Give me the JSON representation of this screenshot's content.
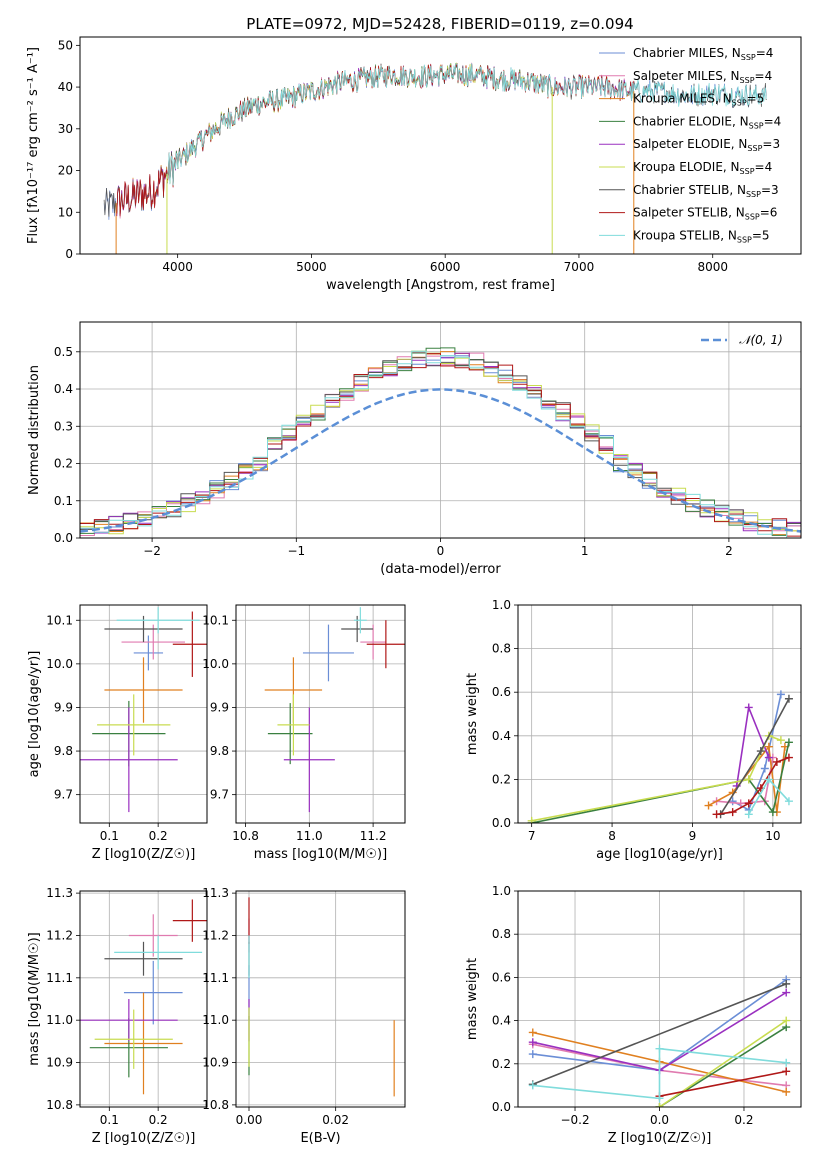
{
  "figure_title": "PLATE=0972, MJD=52428, FIBERID=0119, z=0.094",
  "colors": {
    "chabrier_miles": "#6b8ed6",
    "salpeter_miles": "#e07bb0",
    "kroupa_miles": "#e08020",
    "chabrier_elodie": "#3a8040",
    "salpeter_elodie": "#9a30c0",
    "kroupa_elodie": "#c8dc50",
    "chabrier_stelib": "#555555",
    "salpeter_stelib": "#b01818",
    "kroupa_stelib": "#80dcdc",
    "normal": "#5b8fd6"
  },
  "chart_data": [
    {
      "type": "line",
      "xlabel": "wavelength [Angstrom, rest frame]",
      "ylabel": "Flux [fλ10⁻¹⁷ erg cm⁻² s⁻¹ A⁻¹]",
      "xlim": [
        3270,
        8660
      ],
      "ylim": [
        0,
        52
      ],
      "xticks": [
        4000,
        5000,
        6000,
        7000,
        8000
      ],
      "yticks": [
        0,
        10,
        20,
        30,
        40,
        50
      ],
      "legend_position": "top-right",
      "legend": [
        {
          "label": "Chabrier MILES, N",
          "sub": "SSP",
          "tail": "=4",
          "color": "#6b8ed6"
        },
        {
          "label": "Salpeter MILES, N",
          "sub": "SSP",
          "tail": "=4",
          "color": "#e07bb0"
        },
        {
          "label": "Kroupa MILES, N",
          "sub": "SSP",
          "tail": "=5",
          "color": "#e08020"
        },
        {
          "label": "Chabrier ELODIE, N",
          "sub": "SSP",
          "tail": "=4",
          "color": "#3a8040"
        },
        {
          "label": "Salpeter ELODIE, N",
          "sub": "SSP",
          "tail": "=3",
          "color": "#9a30c0"
        },
        {
          "label": "Kroupa ELODIE, N",
          "sub": "SSP",
          "tail": "=4",
          "color": "#c8dc50"
        },
        {
          "label": "Chabrier STELIB, N",
          "sub": "SSP",
          "tail": "=3",
          "color": "#555555"
        },
        {
          "label": "Salpeter STELIB, N",
          "sub": "SSP",
          "tail": "=6",
          "color": "#b01818"
        },
        {
          "label": "Kroupa STELIB, N",
          "sub": "SSP",
          "tail": "=5",
          "color": "#80dcdc"
        }
      ],
      "continuum": {
        "x": [
          3450,
          3600,
          3800,
          4000,
          4200,
          4400,
          4600,
          4800,
          5000,
          5200,
          5400,
          5600,
          5800,
          6000,
          6200,
          6400,
          6600,
          6800,
          7000,
          7200,
          7400,
          7600,
          7800,
          8000,
          8200,
          8400
        ],
        "y": [
          11,
          13,
          15,
          22,
          28,
          33,
          36,
          37,
          39,
          41,
          42,
          43,
          42.5,
          43,
          43,
          42,
          41.5,
          40,
          40,
          40,
          39,
          39,
          38,
          38.5,
          38,
          38
        ]
      },
      "model_ranges": [
        [
          3450,
          8400
        ],
        [
          3540,
          7410
        ],
        [
          3540,
          7410
        ],
        [
          3920,
          6800
        ],
        [
          3540,
          7410
        ],
        [
          3920,
          6800
        ],
        [
          3450,
          8400
        ],
        [
          3540,
          7410
        ],
        [
          3920,
          8400
        ]
      ]
    },
    {
      "type": "line",
      "xlabel": "(data-model)/error",
      "ylabel": "Normed distribution",
      "xlim": [
        -2.5,
        2.5
      ],
      "ylim": [
        0,
        0.58
      ],
      "xticks": [
        -2,
        -1,
        0,
        1,
        2
      ],
      "yticks": [
        0.0,
        0.1,
        0.2,
        0.3,
        0.4,
        0.5
      ],
      "grid": true,
      "legend_position": "top-right",
      "normal_label": "𝒩(0, 1)",
      "bin_width": 0.1
    },
    {
      "type": "scatter",
      "xlabel": "Z [log10(Z/Z☉)]",
      "ylabel": "age  [log10(age/yr)]",
      "xlim": [
        0.04,
        0.3
      ],
      "ylim": [
        9.635,
        10.135
      ],
      "xticks": [
        0.1,
        0.2
      ],
      "yticks": [
        9.7,
        9.8,
        9.9,
        10.0,
        10.1
      ],
      "grid": true,
      "points": [
        {
          "x": 0.18,
          "xe": 0.03,
          "y": 10.025,
          "ye": 0.04,
          "c": "#6b8ed6"
        },
        {
          "x": 0.19,
          "xe": 0.065,
          "y": 10.05,
          "ye": 0.04,
          "c": "#e07bb0"
        },
        {
          "x": 0.17,
          "xe": 0.08,
          "y": 9.94,
          "ye": 0.075,
          "c": "#e08020"
        },
        {
          "x": 0.14,
          "xe": 0.075,
          "y": 9.84,
          "ye": 0.075,
          "c": "#3a8040"
        },
        {
          "x": 0.14,
          "xe": 0.1,
          "y": 9.78,
          "ye": 0.12,
          "c": "#9a30c0"
        },
        {
          "x": 0.15,
          "xe": 0.075,
          "y": 9.86,
          "ye": 0.07,
          "c": "#c8dc50"
        },
        {
          "x": 0.17,
          "xe": 0.08,
          "y": 10.08,
          "ye": 0.03,
          "c": "#555555"
        },
        {
          "x": 0.27,
          "xe": 0.04,
          "y": 10.045,
          "ye": 0.075,
          "c": "#b01818"
        },
        {
          "x": 0.2,
          "xe": 0.085,
          "y": 10.1,
          "ye": 0.03,
          "c": "#80dcdc"
        }
      ]
    },
    {
      "type": "scatter",
      "xlabel": "mass [log10(M/M☉)]",
      "ylabel": "",
      "xlim": [
        10.77,
        11.3
      ],
      "ylim": [
        9.635,
        10.135
      ],
      "xticks": [
        10.8,
        11.0,
        11.2
      ],
      "yticks": [
        9.7,
        9.8,
        9.9,
        10.0,
        10.1
      ],
      "grid": true,
      "points": [
        {
          "x": 11.06,
          "xe": 0.08,
          "y": 10.025,
          "ye": 0.065,
          "c": "#6b8ed6"
        },
        {
          "x": 11.2,
          "xe": 0.04,
          "y": 10.05,
          "ye": 0.04,
          "c": "#e07bb0"
        },
        {
          "x": 10.95,
          "xe": 0.09,
          "y": 9.94,
          "ye": 0.075,
          "c": "#e08020"
        },
        {
          "x": 10.94,
          "xe": 0.07,
          "y": 9.84,
          "ye": 0.07,
          "c": "#3a8040"
        },
        {
          "x": 11.0,
          "xe": 0.08,
          "y": 9.78,
          "ye": 0.12,
          "c": "#9a30c0"
        },
        {
          "x": 10.95,
          "xe": 0.05,
          "y": 9.86,
          "ye": 0.07,
          "c": "#c8dc50"
        },
        {
          "x": 11.15,
          "xe": 0.05,
          "y": 10.08,
          "ye": 0.03,
          "c": "#555555"
        },
        {
          "x": 11.24,
          "xe": 0.06,
          "y": 10.045,
          "ye": 0.055,
          "c": "#b01818"
        },
        {
          "x": 11.16,
          "xe": 0.02,
          "y": 10.1,
          "ye": 0.03,
          "c": "#80dcdc"
        }
      ]
    },
    {
      "type": "line",
      "xlabel": "age  [log10(age/yr)]",
      "ylabel": "mass weight",
      "xlim": [
        6.83,
        10.35
      ],
      "ylim": [
        0,
        1.0
      ],
      "xticks": [
        7,
        8,
        9,
        10
      ],
      "yticks": [
        0.0,
        0.2,
        0.4,
        0.6,
        0.8,
        1.0
      ],
      "grid": true,
      "series": [
        {
          "c": "#6b8ed6",
          "x": [
            9.5,
            9.7,
            9.9,
            10.1
          ],
          "y": [
            0.1,
            0.06,
            0.25,
            0.59
          ]
        },
        {
          "c": "#e07bb0",
          "x": [
            9.3,
            9.6,
            9.9,
            10.0
          ],
          "y": [
            0.1,
            0.09,
            0.1,
            0.3
          ]
        },
        {
          "c": "#e08020",
          "x": [
            9.2,
            9.5,
            9.95,
            10.05,
            10.15
          ],
          "y": [
            0.08,
            0.14,
            0.35,
            0.05,
            0.35
          ]
        },
        {
          "c": "#3a8040",
          "x": [
            7.0,
            9.7,
            10.0,
            10.2
          ],
          "y": [
            0.0,
            0.2,
            0.05,
            0.37
          ]
        },
        {
          "c": "#9a30c0",
          "x": [
            9.55,
            9.7,
            9.95
          ],
          "y": [
            0.17,
            0.53,
            0.3
          ]
        },
        {
          "c": "#c8dc50",
          "x": [
            7.0,
            9.7,
            9.95,
            10.1
          ],
          "y": [
            0.01,
            0.2,
            0.4,
            0.38
          ]
        },
        {
          "c": "#555555",
          "x": [
            9.35,
            9.85,
            10.2
          ],
          "y": [
            0.04,
            0.33,
            0.57
          ]
        },
        {
          "c": "#b01818",
          "x": [
            9.3,
            9.5,
            9.7,
            9.85,
            10.05,
            10.2
          ],
          "y": [
            0.04,
            0.05,
            0.09,
            0.16,
            0.28,
            0.3
          ]
        },
        {
          "c": "#80dcdc",
          "x": [
            9.7,
            9.95,
            10.2
          ],
          "y": [
            0.04,
            0.2,
            0.1
          ]
        }
      ]
    },
    {
      "type": "scatter",
      "xlabel": "Z [log10(Z/Z☉)]",
      "ylabel": "mass [log10(M/M☉)]",
      "xlim": [
        0.04,
        0.3
      ],
      "ylim": [
        10.795,
        11.305
      ],
      "xticks": [
        0.1,
        0.2
      ],
      "yticks": [
        10.8,
        10.9,
        11.0,
        11.1,
        11.2,
        11.3
      ],
      "grid": true,
      "points": [
        {
          "x": 0.19,
          "xe": 0.06,
          "y": 11.065,
          "ye": 0.075,
          "c": "#6b8ed6"
        },
        {
          "x": 0.19,
          "xe": 0.05,
          "y": 11.2,
          "ye": 0.05,
          "c": "#e07bb0"
        },
        {
          "x": 0.17,
          "xe": 0.08,
          "y": 10.945,
          "ye": 0.12,
          "c": "#e08020"
        },
        {
          "x": 0.14,
          "xe": 0.08,
          "y": 10.935,
          "ye": 0.07,
          "c": "#3a8040"
        },
        {
          "x": 0.14,
          "xe": 0.1,
          "y": 11.0,
          "ye": 0.05,
          "c": "#9a30c0"
        },
        {
          "x": 0.15,
          "xe": 0.08,
          "y": 10.955,
          "ye": 0.07,
          "c": "#c8dc50"
        },
        {
          "x": 0.17,
          "xe": 0.08,
          "y": 11.145,
          "ye": 0.04,
          "c": "#555555"
        },
        {
          "x": 0.27,
          "xe": 0.04,
          "y": 11.235,
          "ye": 0.05,
          "c": "#b01818"
        },
        {
          "x": 0.2,
          "xe": 0.09,
          "y": 11.16,
          "ye": 0.04,
          "c": "#80dcdc"
        }
      ]
    },
    {
      "type": "scatter",
      "xlabel": "E(B-V)",
      "ylabel": "",
      "xlim": [
        -0.003,
        0.036
      ],
      "ylim": [
        10.795,
        11.305
      ],
      "xticks": [
        0.0,
        0.02
      ],
      "yticks": [
        10.8,
        10.9,
        11.0,
        11.1,
        11.2,
        11.3
      ],
      "grid": true,
      "points": [
        {
          "x": 0.0,
          "xe": 0.0,
          "y": 11.065,
          "ye": 0.065,
          "c": "#6b8ed6"
        },
        {
          "x": 0.0,
          "xe": 0.0,
          "y": 11.2,
          "ye": 0.04,
          "c": "#e07bb0"
        },
        {
          "x": 0.0335,
          "xe": 0.0,
          "y": 10.91,
          "ye": 0.09,
          "c": "#e08020"
        },
        {
          "x": 0.0,
          "xe": 0.0,
          "y": 10.94,
          "ye": 0.07,
          "c": "#3a8040"
        },
        {
          "x": 0.0,
          "xe": 0.0,
          "y": 11.0,
          "ye": 0.05,
          "c": "#9a30c0"
        },
        {
          "x": 0.0,
          "xe": 0.0,
          "y": 10.96,
          "ye": 0.07,
          "c": "#c8dc50"
        },
        {
          "x": 0.0,
          "xe": 0.0,
          "y": 11.145,
          "ye": 0.04,
          "c": "#555555"
        },
        {
          "x": 0.0,
          "xe": 0.0,
          "y": 11.235,
          "ye": 0.055,
          "c": "#b01818"
        },
        {
          "x": 0.0,
          "xe": 0.0,
          "y": 11.15,
          "ye": 0.05,
          "c": "#80dcdc"
        }
      ]
    },
    {
      "type": "line",
      "xlabel": "Z [log10(Z/Z☉)]",
      "ylabel": "mass weight",
      "xlim": [
        -0.335,
        0.335
      ],
      "ylim": [
        0,
        1.0
      ],
      "xticks": [
        -0.2,
        0.0,
        0.2
      ],
      "yticks": [
        0.0,
        0.2,
        0.4,
        0.6,
        0.8,
        1.0
      ],
      "grid": true,
      "series": [
        {
          "c": "#6b8ed6",
          "x": [
            -0.3,
            0.0,
            0.3
          ],
          "y": [
            0.245,
            0.17,
            0.59
          ]
        },
        {
          "c": "#e07bb0",
          "x": [
            -0.3,
            0.0,
            0.3
          ],
          "y": [
            0.29,
            0.17,
            0.1
          ]
        },
        {
          "c": "#e08020",
          "x": [
            -0.3,
            0.0,
            0.3
          ],
          "y": [
            0.345,
            0.21,
            0.07
          ]
        },
        {
          "c": "#3a8040",
          "x": [
            0.0,
            0.3
          ],
          "y": [
            0.0,
            0.37
          ]
        },
        {
          "c": "#9a30c0",
          "x": [
            -0.3,
            0.0,
            0.3
          ],
          "y": [
            0.3,
            0.17,
            0.53
          ]
        },
        {
          "c": "#c8dc50",
          "x": [
            0.0,
            0.3
          ],
          "y": [
            0.0,
            0.4
          ]
        },
        {
          "c": "#555555",
          "x": [
            -0.3,
            0.3
          ],
          "y": [
            0.105,
            0.57
          ]
        },
        {
          "c": "#b01818",
          "x": [
            0.0,
            0.3
          ],
          "y": [
            0.05,
            0.165
          ]
        },
        {
          "c": "#80dcdc",
          "x": [
            -0.3,
            0.0,
            0.0,
            0.3
          ],
          "y": [
            0.1,
            0.04,
            0.27,
            0.205
          ]
        }
      ]
    }
  ]
}
